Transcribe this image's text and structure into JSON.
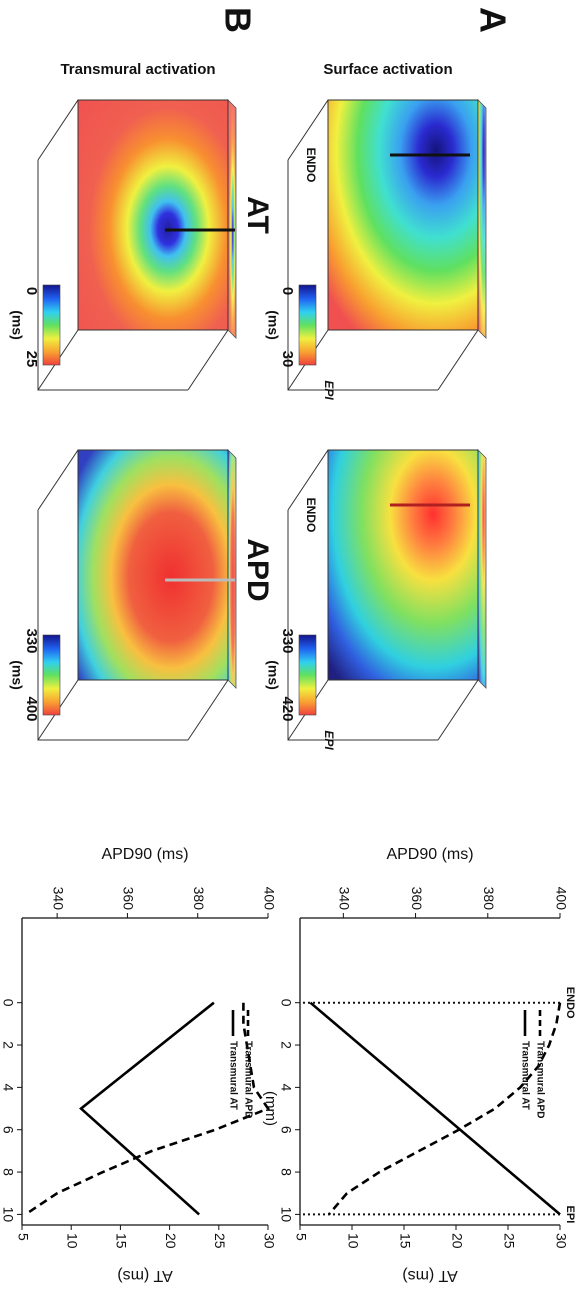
{
  "panels": [
    {
      "label": "A",
      "title": "Surface activation",
      "maps": [
        {
          "endo": "ENDO",
          "epi": "EPI",
          "colorbar": {
            "range": [
              0,
              30
            ],
            "unit": "(ms)"
          }
        },
        {
          "endo": "ENDO",
          "epi": "EPI",
          "colorbar": {
            "range": [
              330,
              420
            ],
            "unit": "(ms)"
          }
        }
      ]
    },
    {
      "label": "B",
      "title": "Transmural activation",
      "maps": [
        {
          "colorbar": {
            "range": [
              0,
              25
            ],
            "unit": "(ms)"
          }
        },
        {
          "colorbar": {
            "range": [
              330,
              400
            ],
            "unit": "(ms)"
          }
        }
      ]
    }
  ],
  "columns": [
    "AT",
    "APD"
  ],
  "chart_data": [
    {
      "type": "line",
      "xlabel": "(mm)",
      "ylabel": "APD90 (ms)",
      "y2label": "AT (ms)",
      "xlim": [
        -4,
        10.5
      ],
      "xticks": [
        0,
        2,
        4,
        6,
        8,
        10
      ],
      "ylim": [
        328,
        400
      ],
      "yticks": [
        340,
        360,
        380,
        400
      ],
      "y2lim": [
        5,
        30
      ],
      "y2ticks": [
        5,
        10,
        15,
        20,
        25,
        30
      ],
      "markers": [
        {
          "x": 0,
          "label": "ENDO"
        },
        {
          "x": 10,
          "label": "EPI"
        }
      ],
      "series": [
        {
          "name": "Transmural APD",
          "color": "#000000",
          "dash": "dashed",
          "x": [
            0,
            1,
            2,
            3,
            4,
            5,
            6,
            7,
            8,
            9,
            10
          ],
          "values": [
            400,
            399,
            397,
            394,
            389,
            382,
            372,
            361,
            350,
            341,
            336
          ]
        },
        {
          "name": "Transmural AT",
          "color": "#000000",
          "dash": "solid",
          "axis": "y2",
          "x": [
            0,
            10
          ],
          "values": [
            6,
            30
          ]
        }
      ]
    },
    {
      "type": "line",
      "xlabel": "(mm)",
      "ylabel": "APD90 (ms)",
      "y2label": "AT (ms)",
      "xlim": [
        -4,
        10.5
      ],
      "xticks": [
        0,
        2,
        4,
        6,
        8,
        10
      ],
      "ylim": [
        330,
        400
      ],
      "yticks": [
        340,
        360,
        380,
        400
      ],
      "y2lim": [
        5,
        30
      ],
      "y2ticks": [
        5,
        10,
        15,
        20,
        25,
        30
      ],
      "series": [
        {
          "name": "Transmural APD",
          "color": "#000000",
          "dash": "dashed",
          "x": [
            0,
            1,
            2,
            3,
            4,
            5,
            6,
            7,
            8,
            9,
            10
          ],
          "values": [
            393,
            393,
            394,
            395,
            396,
            400,
            385,
            367,
            353,
            340,
            331
          ]
        },
        {
          "name": "Transmural AT",
          "color": "#000000",
          "dash": "solid",
          "axis": "y2",
          "x": [
            0,
            5,
            10
          ],
          "values": [
            24.5,
            11,
            23
          ]
        }
      ]
    }
  ]
}
